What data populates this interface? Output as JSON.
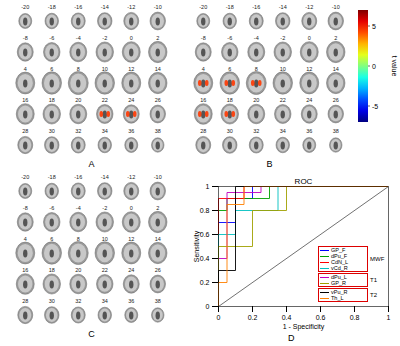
{
  "panels": [
    {
      "label": "A",
      "type": "slices",
      "slices": [
        -20,
        -18,
        -16,
        -14,
        -12,
        -10,
        -8,
        -6,
        -4,
        -2,
        0,
        2,
        4,
        6,
        8,
        10,
        12,
        14,
        16,
        18,
        20,
        22,
        24,
        26,
        28,
        30,
        32,
        34,
        36,
        38
      ],
      "activation_slices": [
        22,
        24
      ],
      "activation_t": 4.5
    },
    {
      "label": "B",
      "type": "slices",
      "slices": [
        -20,
        -18,
        -16,
        -14,
        -12,
        -10,
        -8,
        -6,
        -4,
        -2,
        0,
        2,
        4,
        6,
        8,
        10,
        12,
        14,
        16,
        18,
        20,
        22,
        24,
        26,
        28,
        30,
        32,
        34,
        36,
        38
      ],
      "activation_slices": [
        4,
        6,
        8,
        16,
        18
      ],
      "activation_t": 4.5
    },
    {
      "label": "C",
      "type": "slices",
      "slices": [
        -20,
        -18,
        -16,
        -14,
        -12,
        -10,
        -8,
        -6,
        -4,
        -2,
        0,
        2,
        4,
        6,
        8,
        10,
        12,
        14,
        16,
        18,
        20,
        22,
        24,
        26,
        28,
        30,
        32,
        34,
        36,
        38
      ],
      "activation_slices": []
    }
  ],
  "colorbar": {
    "label": "t value",
    "range": [
      -7,
      7
    ],
    "ticks": [
      5,
      0,
      -5
    ]
  },
  "chart_data": {
    "type": "line",
    "label": "D",
    "title": "ROC",
    "x_label": "1 - Specificity",
    "y_label": "Sensitivity",
    "xlim": [
      0,
      1
    ],
    "ylim": [
      0,
      1
    ],
    "xticks": [
      0,
      0.2,
      0.4,
      0.6,
      0.8,
      1
    ],
    "yticks": [
      0,
      0.2,
      0.4,
      0.6,
      0.8,
      1
    ],
    "legend": "bottom-right",
    "groups": [
      "MWF",
      "T1",
      "T2"
    ],
    "diagonal": {
      "x": [
        0,
        1
      ],
      "y": [
        0,
        1
      ]
    },
    "series": [
      {
        "name": "GP_F",
        "group": "MWF",
        "color": "#0000ff",
        "x": [
          0,
          0,
          0.1,
          0.1,
          0.2,
          0.2,
          1
        ],
        "y": [
          0,
          0.7,
          0.7,
          0.9,
          0.9,
          1,
          1
        ]
      },
      {
        "name": "dPu_F",
        "group": "MWF",
        "color": "#00a000",
        "x": [
          0,
          0,
          0.05,
          0.05,
          0.3,
          0.3,
          1
        ],
        "y": [
          0,
          0.8,
          0.8,
          0.9,
          0.9,
          1,
          1
        ]
      },
      {
        "name": "CdN_L",
        "group": "MWF",
        "color": "#ff0000",
        "x": [
          0,
          0,
          0.15,
          0.15,
          1
        ],
        "y": [
          0,
          0.9,
          0.9,
          1,
          1
        ]
      },
      {
        "name": "vCd_R",
        "group": "MWF",
        "color": "#00c0c0",
        "x": [
          0,
          0,
          0.1,
          0.1,
          0.35,
          0.35,
          1
        ],
        "y": [
          0,
          0.6,
          0.6,
          0.8,
          0.8,
          1,
          1
        ]
      },
      {
        "name": "dPu_L",
        "group": "T1",
        "color": "#c000c0",
        "x": [
          0,
          0,
          0.05,
          0.05,
          0.25,
          0.25,
          1
        ],
        "y": [
          0,
          0.4,
          0.4,
          0.95,
          0.95,
          1,
          1
        ]
      },
      {
        "name": "GP_R",
        "group": "T1",
        "color": "#a0a000",
        "x": [
          0,
          0,
          0.2,
          0.2,
          0.4,
          0.4,
          1
        ],
        "y": [
          0,
          0.5,
          0.5,
          0.8,
          0.8,
          1,
          1
        ]
      },
      {
        "name": "vPu_R",
        "group": "T2",
        "color": "#000000",
        "x": [
          0,
          0,
          0.1,
          0.1,
          1
        ],
        "y": [
          0,
          0.3,
          0.3,
          1,
          1
        ]
      },
      {
        "name": "Th_L",
        "group": "T2",
        "color": "#ff8000",
        "x": [
          0,
          0,
          0.05,
          0.05,
          0.15,
          0.15,
          1
        ],
        "y": [
          0,
          0.2,
          0.2,
          0.85,
          0.85,
          1,
          1
        ]
      }
    ]
  }
}
